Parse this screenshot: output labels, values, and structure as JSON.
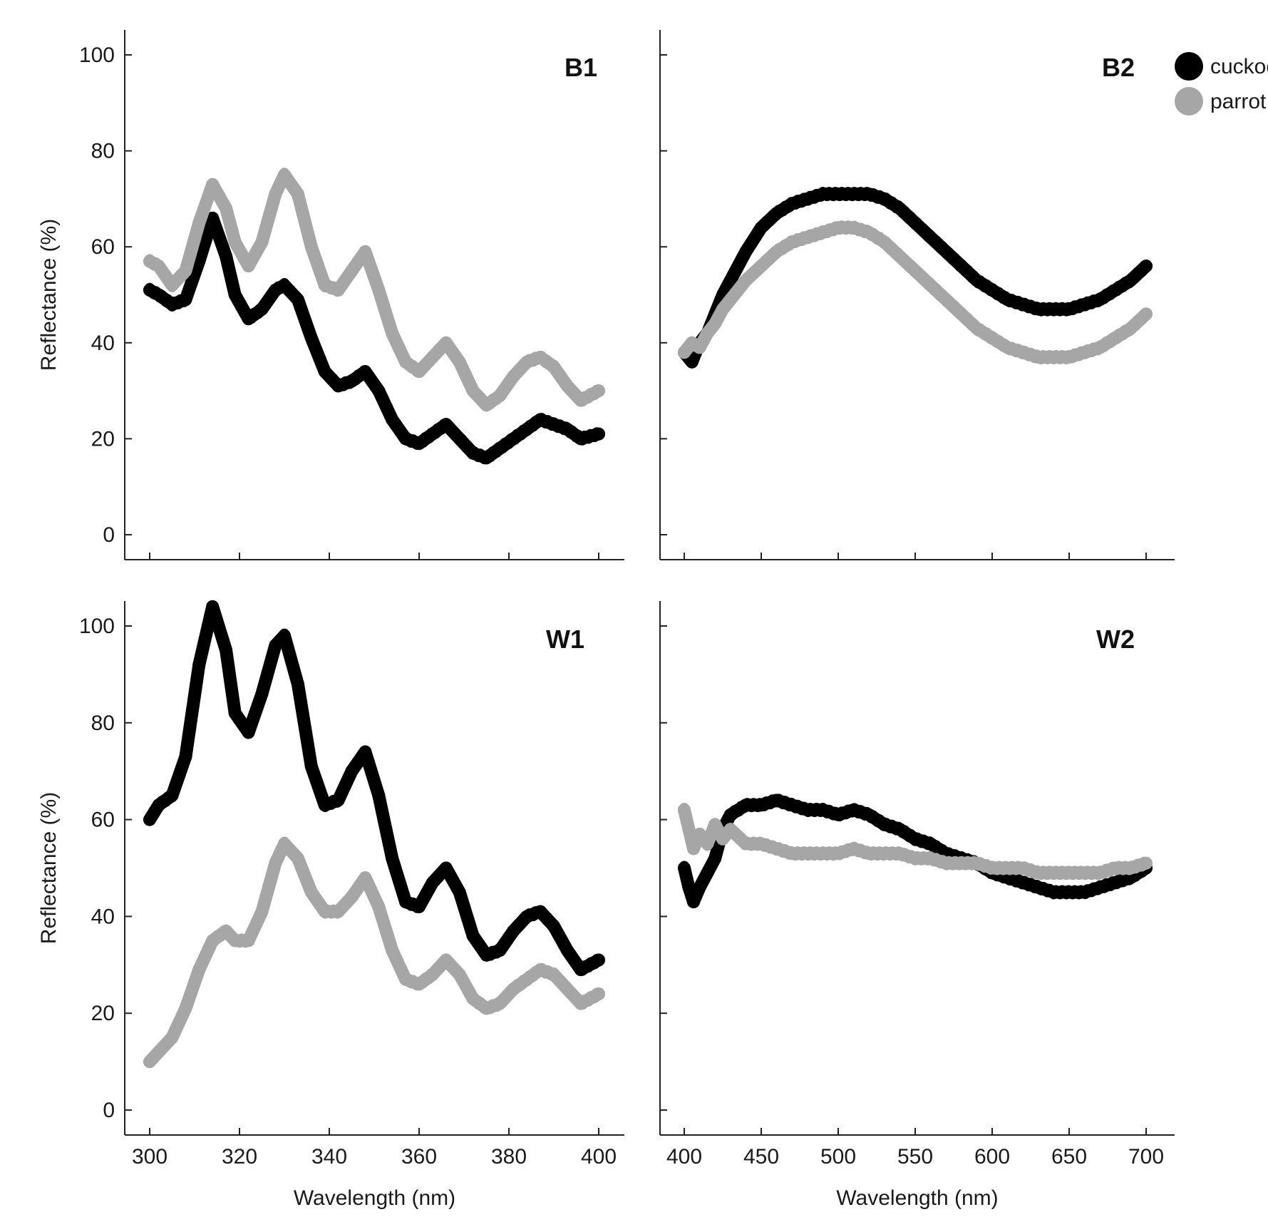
{
  "chart_data": [
    {
      "panel": "B1",
      "type": "scatter",
      "xlabel": "",
      "ylabel": "Reflectance (%)",
      "xlim": [
        300,
        400
      ],
      "ylim": [
        0,
        100
      ],
      "xticks": [
        300,
        320,
        340,
        360,
        380,
        400
      ],
      "yticks": [
        0,
        20,
        40,
        60,
        80,
        100
      ],
      "show_x_tick_labels": false,
      "show_y_tick_labels": true,
      "series": [
        {
          "name": "cuckoo",
          "color": "#000000",
          "x": [
            300,
            302,
            305,
            308,
            311,
            314,
            317,
            319,
            322,
            325,
            328,
            330,
            333,
            336,
            339,
            342,
            345,
            348,
            351,
            354,
            357,
            360,
            363,
            366,
            369,
            372,
            375,
            378,
            381,
            384,
            387,
            390,
            393,
            396,
            400
          ],
          "y": [
            51,
            50,
            48,
            49,
            57,
            66,
            58,
            50,
            45,
            47,
            51,
            52,
            49,
            41,
            34,
            31,
            32,
            34,
            30,
            24,
            20,
            19,
            21,
            23,
            20,
            17,
            16,
            18,
            20,
            22,
            24,
            23,
            22,
            20,
            21
          ]
        },
        {
          "name": "parrot",
          "color": "#a6a6a6",
          "x": [
            300,
            302,
            305,
            308,
            311,
            314,
            317,
            319,
            322,
            325,
            328,
            330,
            333,
            336,
            339,
            342,
            345,
            348,
            351,
            354,
            357,
            360,
            363,
            366,
            369,
            372,
            375,
            378,
            381,
            384,
            387,
            390,
            393,
            396,
            400
          ],
          "y": [
            57,
            56,
            52,
            55,
            65,
            73,
            68,
            61,
            56,
            61,
            71,
            75,
            71,
            60,
            52,
            51,
            55,
            59,
            51,
            42,
            36,
            34,
            37,
            40,
            36,
            30,
            27,
            29,
            33,
            36,
            37,
            35,
            31,
            28,
            30
          ]
        }
      ]
    },
    {
      "panel": "B2",
      "type": "scatter",
      "xlabel": "",
      "ylabel": "",
      "xlim": [
        400,
        700
      ],
      "ylim": [
        0,
        100
      ],
      "xticks": [
        400,
        450,
        500,
        550,
        600,
        650,
        700
      ],
      "yticks": [
        0,
        20,
        40,
        60,
        80,
        100
      ],
      "show_x_tick_labels": false,
      "show_y_tick_labels": false,
      "series": [
        {
          "name": "cuckoo",
          "color": "#000000",
          "x": [
            400,
            405,
            410,
            415,
            420,
            425,
            430,
            440,
            450,
            460,
            470,
            480,
            490,
            500,
            510,
            520,
            530,
            540,
            550,
            560,
            570,
            580,
            590,
            600,
            610,
            620,
            630,
            640,
            650,
            660,
            670,
            680,
            690,
            700
          ],
          "y": [
            38,
            36,
            40,
            42,
            46,
            50,
            53,
            59,
            64,
            67,
            69,
            70,
            71,
            71,
            71,
            71,
            70,
            68,
            65,
            62,
            59,
            56,
            53,
            51,
            49,
            48,
            47,
            47,
            47,
            48,
            49,
            51,
            53,
            56
          ]
        },
        {
          "name": "parrot",
          "color": "#a6a6a6",
          "x": [
            400,
            405,
            410,
            415,
            420,
            425,
            430,
            440,
            450,
            460,
            470,
            480,
            490,
            500,
            510,
            520,
            530,
            540,
            550,
            560,
            570,
            580,
            590,
            600,
            610,
            620,
            630,
            640,
            650,
            660,
            670,
            680,
            690,
            700
          ],
          "y": [
            38,
            40,
            39,
            42,
            44,
            47,
            49,
            53,
            56,
            59,
            61,
            62,
            63,
            64,
            64,
            63,
            61,
            58,
            55,
            52,
            49,
            46,
            43,
            41,
            39,
            38,
            37,
            37,
            37,
            38,
            39,
            41,
            43,
            46
          ]
        }
      ]
    },
    {
      "panel": "W1",
      "type": "scatter",
      "xlabel": "Wavelength (nm)",
      "ylabel": "Reflectance (%)",
      "xlim": [
        300,
        400
      ],
      "ylim": [
        0,
        100
      ],
      "xticks": [
        300,
        320,
        340,
        360,
        380,
        400
      ],
      "yticks": [
        0,
        20,
        40,
        60,
        80,
        100
      ],
      "show_x_tick_labels": true,
      "show_y_tick_labels": true,
      "series": [
        {
          "name": "cuckoo",
          "color": "#000000",
          "x": [
            300,
            302,
            305,
            308,
            311,
            314,
            317,
            319,
            322,
            325,
            328,
            330,
            333,
            336,
            339,
            342,
            345,
            348,
            351,
            354,
            357,
            360,
            363,
            366,
            369,
            372,
            375,
            378,
            381,
            384,
            387,
            390,
            393,
            396,
            400
          ],
          "y": [
            60,
            63,
            65,
            73,
            92,
            104,
            95,
            82,
            78,
            86,
            96,
            98,
            88,
            71,
            63,
            64,
            70,
            74,
            65,
            52,
            43,
            42,
            47,
            50,
            45,
            36,
            32,
            33,
            37,
            40,
            41,
            38,
            33,
            29,
            31
          ]
        },
        {
          "name": "parrot",
          "color": "#a6a6a6",
          "x": [
            300,
            302,
            305,
            308,
            311,
            314,
            317,
            319,
            322,
            325,
            328,
            330,
            333,
            336,
            339,
            342,
            345,
            348,
            351,
            354,
            357,
            360,
            363,
            366,
            369,
            372,
            375,
            378,
            381,
            384,
            387,
            390,
            393,
            396,
            400
          ],
          "y": [
            10,
            12,
            15,
            21,
            29,
            35,
            37,
            35,
            35,
            41,
            51,
            55,
            52,
            45,
            41,
            41,
            44,
            48,
            42,
            33,
            27,
            26,
            28,
            31,
            28,
            23,
            21,
            22,
            25,
            27,
            29,
            28,
            25,
            22,
            24
          ]
        }
      ]
    },
    {
      "panel": "W2",
      "type": "scatter",
      "xlabel": "Wavelength (nm)",
      "ylabel": "",
      "xlim": [
        400,
        700
      ],
      "ylim": [
        0,
        100
      ],
      "xticks": [
        400,
        450,
        500,
        550,
        600,
        650,
        700
      ],
      "yticks": [
        0,
        20,
        40,
        60,
        80,
        100
      ],
      "show_x_tick_labels": true,
      "show_y_tick_labels": false,
      "series": [
        {
          "name": "cuckoo",
          "color": "#000000",
          "x": [
            400,
            403,
            406,
            410,
            415,
            420,
            425,
            430,
            440,
            450,
            460,
            470,
            480,
            490,
            500,
            510,
            520,
            530,
            540,
            550,
            560,
            570,
            580,
            590,
            600,
            610,
            620,
            630,
            640,
            650,
            660,
            670,
            680,
            690,
            700
          ],
          "y": [
            50,
            46,
            43,
            46,
            49,
            52,
            58,
            61,
            63,
            63,
            64,
            63,
            62,
            62,
            61,
            62,
            61,
            59,
            58,
            56,
            55,
            53,
            52,
            51,
            49,
            48,
            47,
            46,
            45,
            45,
            45,
            46,
            47,
            48,
            50
          ]
        },
        {
          "name": "parrot",
          "color": "#a6a6a6",
          "x": [
            400,
            403,
            406,
            410,
            415,
            420,
            425,
            430,
            440,
            450,
            460,
            470,
            480,
            490,
            500,
            510,
            520,
            530,
            540,
            550,
            560,
            570,
            580,
            590,
            600,
            610,
            620,
            630,
            640,
            650,
            660,
            670,
            680,
            690,
            700
          ],
          "y": [
            62,
            58,
            54,
            57,
            55,
            59,
            56,
            58,
            55,
            55,
            54,
            53,
            53,
            53,
            53,
            54,
            53,
            53,
            53,
            52,
            52,
            51,
            51,
            51,
            50,
            50,
            50,
            49,
            49,
            49,
            49,
            49,
            50,
            50,
            51
          ]
        }
      ]
    }
  ],
  "legend": {
    "placement": "top-right",
    "items": [
      {
        "name": "cuckoo",
        "label": "cuckoo",
        "color": "#000000"
      },
      {
        "name": "parrot",
        "label": "parrot",
        "color": "#a6a6a6"
      }
    ]
  }
}
